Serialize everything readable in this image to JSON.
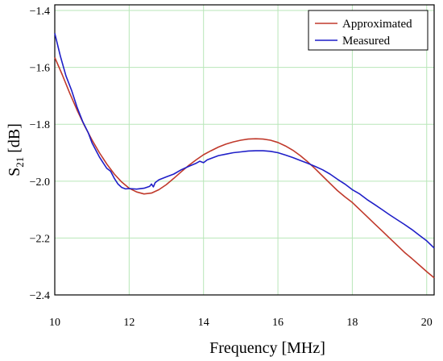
{
  "chart_data": {
    "type": "line",
    "title": "",
    "xlabel": "Frequency [MHz]",
    "ylabel_main": "S",
    "ylabel_sub": "21",
    "ylabel_unit": " [dB]",
    "xlim": [
      10,
      20.2
    ],
    "ylim": [
      -2.4,
      -1.38
    ],
    "xticks": [
      10,
      12,
      14,
      16,
      18,
      20
    ],
    "yticks": [
      -2.4,
      -2.2,
      -2.0,
      -1.8,
      -1.6,
      -1.4
    ],
    "xtick_labels": [
      "10",
      "12",
      "14",
      "16",
      "18",
      "20"
    ],
    "ytick_labels": [
      "−2.4",
      "−2.2",
      "−2.0",
      "−1.8",
      "−1.6",
      "−1.4"
    ],
    "grid": true,
    "grid_color": "#b8e6b8",
    "legend_position": "top-right",
    "series": [
      {
        "name": "Approximated",
        "color": "#c0392b",
        "x": [
          10.0,
          10.2,
          10.4,
          10.6,
          10.8,
          11.0,
          11.2,
          11.4,
          11.6,
          11.8,
          12.0,
          12.2,
          12.4,
          12.6,
          12.8,
          13.0,
          13.2,
          13.4,
          13.6,
          13.8,
          14.0,
          14.2,
          14.4,
          14.6,
          14.8,
          15.0,
          15.2,
          15.4,
          15.6,
          15.8,
          16.0,
          16.2,
          16.4,
          16.6,
          16.8,
          17.0,
          17.2,
          17.4,
          17.6,
          17.8,
          18.0,
          18.2,
          18.4,
          18.6,
          18.8,
          19.0,
          19.2,
          19.4,
          19.6,
          19.8,
          20.0,
          20.2
        ],
        "y": [
          -1.565,
          -1.625,
          -1.69,
          -1.75,
          -1.805,
          -1.855,
          -1.9,
          -1.94,
          -1.975,
          -2.003,
          -2.025,
          -2.038,
          -2.045,
          -2.042,
          -2.03,
          -2.012,
          -1.99,
          -1.967,
          -1.945,
          -1.925,
          -1.907,
          -1.893,
          -1.88,
          -1.87,
          -1.862,
          -1.856,
          -1.852,
          -1.851,
          -1.852,
          -1.856,
          -1.864,
          -1.876,
          -1.891,
          -1.91,
          -1.932,
          -1.956,
          -1.982,
          -2.008,
          -2.033,
          -2.055,
          -2.075,
          -2.1,
          -2.125,
          -2.15,
          -2.175,
          -2.2,
          -2.225,
          -2.25,
          -2.272,
          -2.295,
          -2.318,
          -2.34
        ]
      },
      {
        "name": "Measured",
        "color": "#1f1fc8",
        "x": [
          10.0,
          10.15,
          10.3,
          10.45,
          10.6,
          10.75,
          10.9,
          11.0,
          11.1,
          11.2,
          11.3,
          11.4,
          11.5,
          11.6,
          11.7,
          11.8,
          11.9,
          12.0,
          12.2,
          12.4,
          12.55,
          12.6,
          12.65,
          12.7,
          12.8,
          13.0,
          13.2,
          13.4,
          13.6,
          13.8,
          13.9,
          14.0,
          14.1,
          14.2,
          14.4,
          14.6,
          14.8,
          15.0,
          15.2,
          15.4,
          15.6,
          15.8,
          16.0,
          16.2,
          16.4,
          16.6,
          16.8,
          17.0,
          17.2,
          17.4,
          17.6,
          17.8,
          18.0,
          18.2,
          18.4,
          18.6,
          18.8,
          19.0,
          19.2,
          19.4,
          19.6,
          19.8,
          20.0,
          20.2
        ],
        "y": [
          -1.48,
          -1.56,
          -1.63,
          -1.68,
          -1.74,
          -1.79,
          -1.83,
          -1.865,
          -1.89,
          -1.915,
          -1.935,
          -1.955,
          -1.965,
          -1.99,
          -2.01,
          -2.022,
          -2.027,
          -2.026,
          -2.028,
          -2.025,
          -2.018,
          -2.01,
          -2.02,
          -2.005,
          -1.995,
          -1.985,
          -1.975,
          -1.96,
          -1.948,
          -1.937,
          -1.93,
          -1.935,
          -1.925,
          -1.92,
          -1.91,
          -1.905,
          -1.9,
          -1.897,
          -1.894,
          -1.893,
          -1.893,
          -1.895,
          -1.9,
          -1.908,
          -1.917,
          -1.927,
          -1.937,
          -1.948,
          -1.96,
          -1.975,
          -1.993,
          -2.01,
          -2.03,
          -2.045,
          -2.065,
          -2.082,
          -2.1,
          -2.118,
          -2.135,
          -2.152,
          -2.17,
          -2.19,
          -2.21,
          -2.235
        ]
      }
    ]
  }
}
